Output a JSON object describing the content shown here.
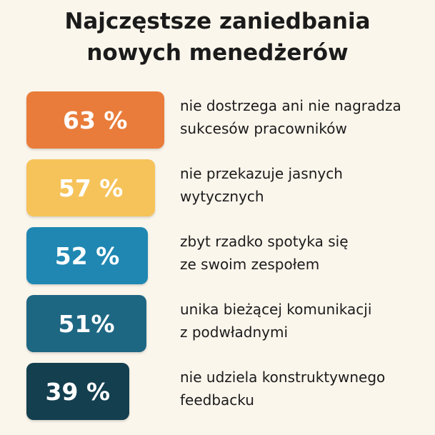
{
  "chart_data": {
    "type": "bar",
    "title": "Najczęstsze zaniedbania\nnowych menedżerów",
    "categories": [
      "nie dostrzega ani nie nagradza\nsukcesów pracowników",
      "nie przekazuje jasnych\nwytycznych",
      "zbyt rzadko spotyka się\nze swoim zespołem",
      "unika bieżącej komunikacji\nz podwładnymi",
      "nie udziela konstruktywnego\nfeedbacku"
    ],
    "values": [
      63,
      57,
      52,
      51,
      39
    ],
    "value_labels": [
      "63 %",
      "57 %",
      "52 %",
      "51%",
      "39 %"
    ],
    "colors": [
      "#e97c3a",
      "#f6c35a",
      "#1f87b2",
      "#1e6783",
      "#133f4f"
    ]
  }
}
